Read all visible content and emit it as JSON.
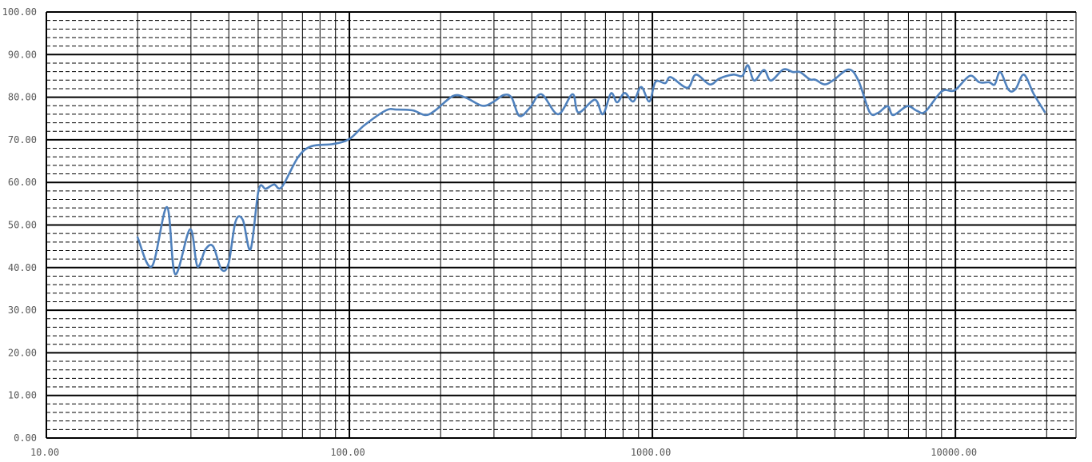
{
  "chart_data": {
    "type": "line",
    "title": "",
    "xlabel": "",
    "ylabel": "",
    "x_scale": "log",
    "xlim": [
      10,
      25000
    ],
    "ylim": [
      0,
      100
    ],
    "grid": true,
    "x_tick_labels": [
      "10.00",
      "100.00",
      "1000.00",
      "10000.00"
    ],
    "x_ticks": [
      10,
      100,
      1000,
      10000
    ],
    "y_tick_labels": [
      "0.00",
      "10.00",
      "20.00",
      "30.00",
      "40.00",
      "50.00",
      "60.00",
      "70.00",
      "80.00",
      "90.00",
      "100.00"
    ],
    "y_ticks": [
      0,
      10,
      20,
      30,
      40,
      50,
      60,
      70,
      80,
      90,
      100
    ],
    "line_color": "#4f81bd",
    "series": [
      {
        "x": [
          20,
          22.3,
          25,
          26.6,
          29.8,
          31.5,
          33.5,
          35.5,
          37.8,
          39.9,
          42.1,
          44.5,
          47.2,
          50.2,
          53,
          56.4,
          59.8,
          67.7,
          75,
          88.3,
          100,
          112,
          132,
          143,
          162,
          178,
          192,
          220,
          242,
          274,
          297,
          323,
          343,
          364,
          394,
          430,
          488,
          545,
          570,
          646,
          686,
          730,
          765,
          810,
          865,
          918,
          977,
          1024,
          1103,
          1150,
          1305,
          1391,
          1546,
          1665,
          1851,
          1980,
          2065,
          2167,
          2334,
          2460,
          2705,
          2912,
          3070,
          3305,
          3450,
          3700,
          3956,
          4444,
          4785,
          5210,
          5546,
          5973,
          6234,
          6930,
          7463,
          7950,
          9020,
          9930,
          11150,
          12000,
          12920,
          13480,
          14060,
          14990,
          15790,
          16820,
          18120,
          19720
        ],
        "y": [
          47.1,
          40.3,
          54.2,
          38.5,
          49,
          40.3,
          44.3,
          45,
          39.6,
          40.9,
          50.8,
          51.2,
          44.3,
          58.3,
          58.5,
          59.5,
          58.9,
          65.9,
          68.5,
          69,
          70.2,
          73.4,
          76.9,
          77.1,
          76.9,
          75.8,
          76.9,
          80.3,
          79.9,
          78,
          78.8,
          80.5,
          79.9,
          75.6,
          77.5,
          80.7,
          76,
          80.7,
          76.4,
          79.4,
          76,
          80.9,
          78.8,
          81,
          79,
          82.4,
          79,
          83.6,
          83.3,
          84.7,
          82.2,
          85.3,
          83,
          84.4,
          85.3,
          85,
          87.5,
          83.9,
          86.4,
          83.9,
          86.5,
          85.9,
          85.9,
          84.2,
          84.1,
          83,
          84,
          86.5,
          83.9,
          76.5,
          76.3,
          77.9,
          75.8,
          77.9,
          76.8,
          76.6,
          81.4,
          81.6,
          85,
          83.5,
          83.5,
          83,
          85.9,
          81.7,
          81.9,
          85.3,
          80.8,
          76.5
        ]
      }
    ]
  }
}
